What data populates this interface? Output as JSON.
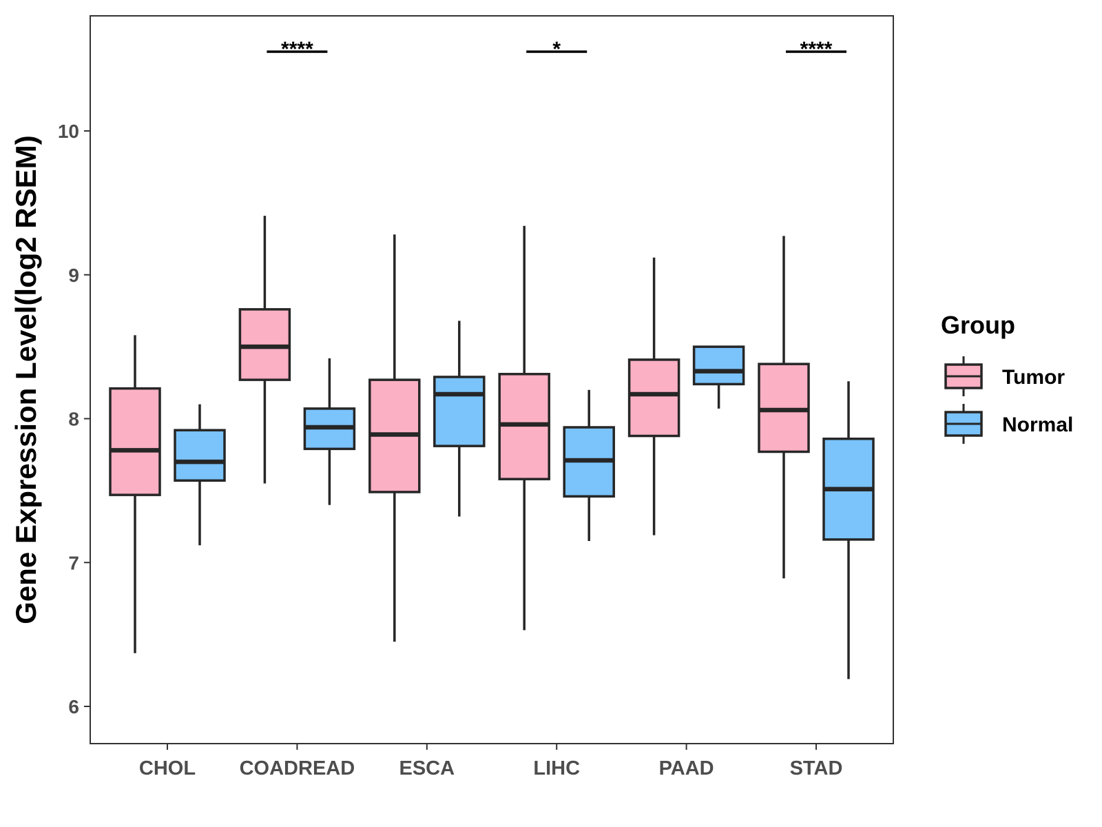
{
  "chart_data": {
    "type": "boxplot",
    "title": "",
    "xlabel": "",
    "ylabel": "Gene Expression Level(log2 RSEM)",
    "ylim": [
      5.75,
      10.8
    ],
    "yticks": [
      6,
      7,
      8,
      9,
      10
    ],
    "categories": [
      "CHOL",
      "COADREAD",
      "ESCA",
      "LIHC",
      "PAAD",
      "STAD"
    ],
    "legend": {
      "title": "Group",
      "position": "right",
      "entries": [
        "Tumor",
        "Normal"
      ]
    },
    "colors": {
      "Tumor": "#fbb0c4",
      "Normal": "#7ac3fb",
      "outline": "#262626"
    },
    "series": [
      {
        "name": "Tumor",
        "boxes": [
          {
            "category": "CHOL",
            "min": 6.37,
            "q1": 7.47,
            "median": 7.78,
            "q3": 8.21,
            "max": 8.58
          },
          {
            "category": "COADREAD",
            "min": 7.55,
            "q1": 8.27,
            "median": 8.5,
            "q3": 8.76,
            "max": 9.41
          },
          {
            "category": "ESCA",
            "min": 6.45,
            "q1": 7.49,
            "median": 7.89,
            "q3": 8.27,
            "max": 9.28
          },
          {
            "category": "LIHC",
            "min": 6.53,
            "q1": 7.58,
            "median": 7.96,
            "q3": 8.31,
            "max": 9.34
          },
          {
            "category": "PAAD",
            "min": 7.19,
            "q1": 7.88,
            "median": 8.17,
            "q3": 8.41,
            "max": 9.12
          },
          {
            "category": "STAD",
            "min": 6.89,
            "q1": 7.77,
            "median": 8.06,
            "q3": 8.38,
            "max": 9.27
          }
        ]
      },
      {
        "name": "Normal",
        "boxes": [
          {
            "category": "CHOL",
            "min": 7.12,
            "q1": 7.57,
            "median": 7.7,
            "q3": 7.92,
            "max": 8.1
          },
          {
            "category": "COADREAD",
            "min": 7.4,
            "q1": 7.79,
            "median": 7.94,
            "q3": 8.07,
            "max": 8.42
          },
          {
            "category": "ESCA",
            "min": 7.32,
            "q1": 7.81,
            "median": 8.17,
            "q3": 8.29,
            "max": 8.68
          },
          {
            "category": "LIHC",
            "min": 7.15,
            "q1": 7.46,
            "median": 7.71,
            "q3": 7.94,
            "max": 8.2
          },
          {
            "category": "PAAD",
            "min": 8.07,
            "q1": 8.24,
            "median": 8.33,
            "q3": 8.5,
            "max": 8.5
          },
          {
            "category": "STAD",
            "min": 6.19,
            "q1": 7.16,
            "median": 7.51,
            "q3": 7.86,
            "max": 8.26
          }
        ]
      }
    ],
    "annotations": [
      {
        "category": "COADREAD",
        "label": "****",
        "y": 10.55
      },
      {
        "category": "LIHC",
        "label": "*",
        "y": 10.55
      },
      {
        "category": "STAD",
        "label": "****",
        "y": 10.55
      }
    ]
  }
}
